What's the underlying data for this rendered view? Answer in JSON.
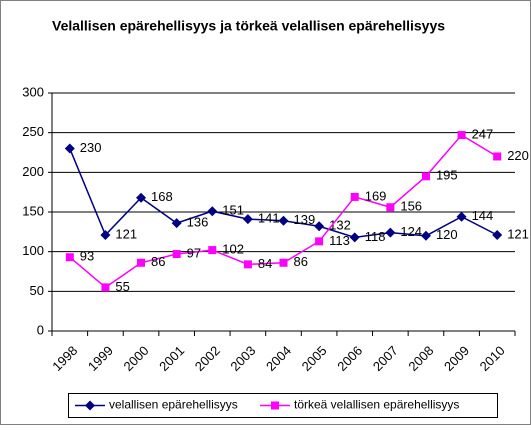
{
  "chart_data": {
    "type": "line",
    "title": "Velallisen epärehellisyys ja törkeä velallisen epärehellisyys",
    "categories": [
      "1998",
      "1999",
      "2000",
      "2001",
      "2002",
      "2003",
      "2004",
      "2005",
      "2006",
      "2007",
      "2008",
      "2009",
      "2010"
    ],
    "series": [
      {
        "name": "velallisen epärehellisyys",
        "color": "#000080",
        "marker": "diamond",
        "values": [
          230,
          121,
          168,
          136,
          151,
          141,
          139,
          132,
          118,
          124,
          120,
          144,
          121
        ]
      },
      {
        "name": "törkeä velallisen epärehellisyys",
        "color": "#ff00ff",
        "marker": "square",
        "values": [
          93,
          55,
          86,
          97,
          102,
          84,
          86,
          113,
          169,
          156,
          195,
          247,
          220
        ]
      }
    ],
    "ylim": [
      0,
      300
    ],
    "yticks": [
      0,
      50,
      100,
      150,
      200,
      250,
      300
    ],
    "grid": true,
    "legend": "bottom"
  }
}
